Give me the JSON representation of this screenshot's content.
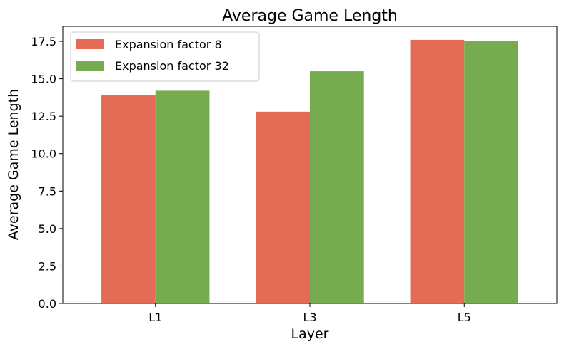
{
  "chart_data": {
    "type": "bar",
    "title": "Average Game Length",
    "xlabel": "Layer",
    "ylabel": "Average Game Length",
    "categories": [
      "L1",
      "L3",
      "L5"
    ],
    "series": [
      {
        "name": "Expansion factor 8",
        "color": "#e46b55",
        "values": [
          13.9,
          12.8,
          17.6
        ]
      },
      {
        "name": "Expansion factor 32",
        "color": "#76ab50",
        "values": [
          14.2,
          15.5,
          17.5
        ]
      }
    ],
    "ylim": [
      0,
      18.5
    ],
    "yticks": [
      "0.0",
      "2.5",
      "5.0",
      "7.5",
      "10.0",
      "12.5",
      "15.0",
      "17.5"
    ],
    "grid": false,
    "legend_position": "top-left"
  }
}
